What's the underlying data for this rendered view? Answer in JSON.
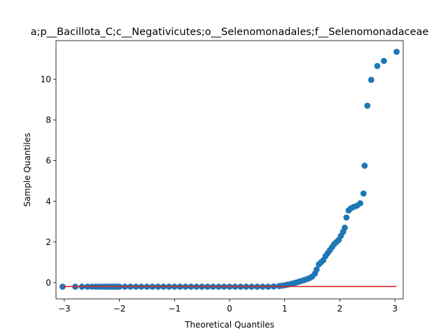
{
  "chart_data": {
    "type": "scatter",
    "title": "a;p__Bacillota_C;c__Negativicutes;o__Selenomonadales;f__Selenomonadaceae",
    "xlabel": "Theoretical Quantiles",
    "ylabel": "Sample Quantiles",
    "xlim": [
      -3.15,
      3.15
    ],
    "ylim": [
      -0.8,
      11.9
    ],
    "xticks": [
      -3,
      -2,
      -1,
      0,
      1,
      2,
      3
    ],
    "xtick_labels": [
      "−3",
      "−2",
      "−1",
      "0",
      "1",
      "2",
      "3"
    ],
    "yticks": [
      0,
      2,
      4,
      6,
      8,
      10
    ],
    "ytick_labels": [
      "0",
      "2",
      "4",
      "6",
      "8",
      "10"
    ],
    "grid": false,
    "colors": {
      "points": "#1f77b4",
      "reference_line": "#d62728"
    },
    "reference_line": {
      "x": [
        -3.03,
        3.03
      ],
      "y": [
        -0.19,
        -0.19
      ]
    },
    "series": [
      {
        "points": [
          [
            -3.03,
            -0.2
          ],
          [
            -2.8,
            -0.2
          ],
          [
            -2.68,
            -0.2
          ],
          [
            -2.58,
            -0.2
          ],
          [
            -2.5,
            -0.2
          ],
          [
            -2.43,
            -0.2
          ],
          [
            -2.37,
            -0.2
          ],
          [
            -2.31,
            -0.2
          ],
          [
            -2.26,
            -0.2
          ],
          [
            -2.21,
            -0.2
          ],
          [
            -2.16,
            -0.2
          ],
          [
            -2.12,
            -0.2
          ],
          [
            -2.08,
            -0.2
          ],
          [
            -2.04,
            -0.2
          ],
          [
            -2.0,
            -0.2
          ],
          [
            -1.9,
            -0.2
          ],
          [
            -1.8,
            -0.2
          ],
          [
            -1.7,
            -0.2
          ],
          [
            -1.6,
            -0.2
          ],
          [
            -1.5,
            -0.2
          ],
          [
            -1.4,
            -0.2
          ],
          [
            -1.3,
            -0.2
          ],
          [
            -1.2,
            -0.2
          ],
          [
            -1.1,
            -0.2
          ],
          [
            -1.0,
            -0.2
          ],
          [
            -0.9,
            -0.2
          ],
          [
            -0.8,
            -0.2
          ],
          [
            -0.7,
            -0.2
          ],
          [
            -0.6,
            -0.2
          ],
          [
            -0.5,
            -0.2
          ],
          [
            -0.4,
            -0.2
          ],
          [
            -0.3,
            -0.2
          ],
          [
            -0.2,
            -0.2
          ],
          [
            -0.1,
            -0.2
          ],
          [
            0.0,
            -0.2
          ],
          [
            0.1,
            -0.2
          ],
          [
            0.2,
            -0.2
          ],
          [
            0.3,
            -0.2
          ],
          [
            0.4,
            -0.2
          ],
          [
            0.5,
            -0.2
          ],
          [
            0.6,
            -0.2
          ],
          [
            0.7,
            -0.2
          ],
          [
            0.8,
            -0.19
          ],
          [
            0.9,
            -0.17
          ],
          [
            0.95,
            -0.15
          ],
          [
            1.0,
            -0.13
          ],
          [
            1.05,
            -0.1
          ],
          [
            1.1,
            -0.07
          ],
          [
            1.15,
            -0.04
          ],
          [
            1.2,
            0.0
          ],
          [
            1.25,
            0.04
          ],
          [
            1.3,
            0.08
          ],
          [
            1.35,
            0.12
          ],
          [
            1.4,
            0.17
          ],
          [
            1.45,
            0.22
          ],
          [
            1.5,
            0.3
          ],
          [
            1.55,
            0.45
          ],
          [
            1.58,
            0.65
          ],
          [
            1.62,
            0.9
          ],
          [
            1.66,
            1.0
          ],
          [
            1.7,
            1.1
          ],
          [
            1.74,
            1.3
          ],
          [
            1.78,
            1.45
          ],
          [
            1.82,
            1.6
          ],
          [
            1.86,
            1.75
          ],
          [
            1.9,
            1.9
          ],
          [
            1.94,
            2.0
          ],
          [
            1.98,
            2.1
          ],
          [
            2.02,
            2.3
          ],
          [
            2.06,
            2.5
          ],
          [
            2.09,
            2.7
          ],
          [
            2.12,
            3.2
          ],
          [
            2.16,
            3.55
          ],
          [
            2.2,
            3.65
          ],
          [
            2.25,
            3.72
          ],
          [
            2.31,
            3.78
          ],
          [
            2.37,
            3.9
          ],
          [
            2.43,
            4.38
          ],
          [
            2.45,
            5.75
          ],
          [
            2.5,
            8.7
          ],
          [
            2.57,
            9.97
          ],
          [
            2.68,
            10.65
          ],
          [
            2.8,
            10.9
          ],
          [
            3.03,
            11.35
          ]
        ]
      }
    ]
  }
}
